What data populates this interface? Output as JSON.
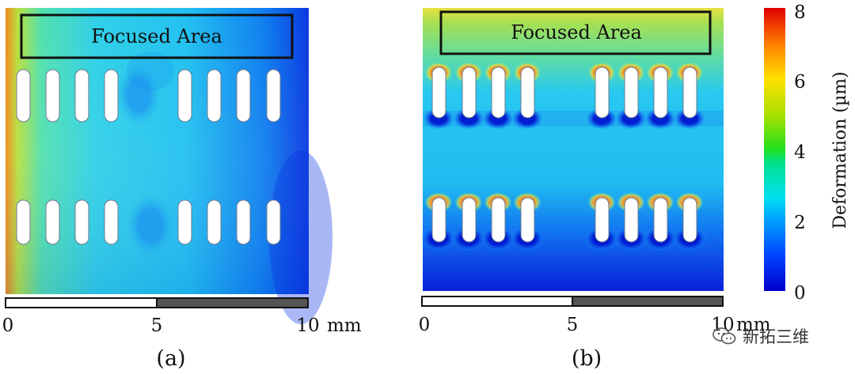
{
  "panels": [
    {
      "id": "a",
      "caption": "(a)",
      "focus_label": "Focused Area",
      "scale": {
        "ticks": [
          "0",
          "5",
          "10"
        ],
        "unit": "mm"
      }
    },
    {
      "id": "b",
      "caption": "(b)",
      "focus_label": "Focused Area",
      "scale": {
        "ticks": [
          "0",
          "5",
          "10"
        ],
        "unit": "mm"
      }
    }
  ],
  "colorbar": {
    "label": "Deformation (µm)",
    "ticks": [
      "0",
      "2",
      "4",
      "6",
      "8"
    ],
    "range": [
      0,
      8
    ],
    "colors": [
      "#0000c8",
      "#0050ff",
      "#00c8ff",
      "#00e070",
      "#7ae000",
      "#ffe000",
      "#ff8000",
      "#e00000"
    ]
  },
  "watermark": {
    "text": "新拓三维",
    "icon": "wechat-icon"
  }
}
